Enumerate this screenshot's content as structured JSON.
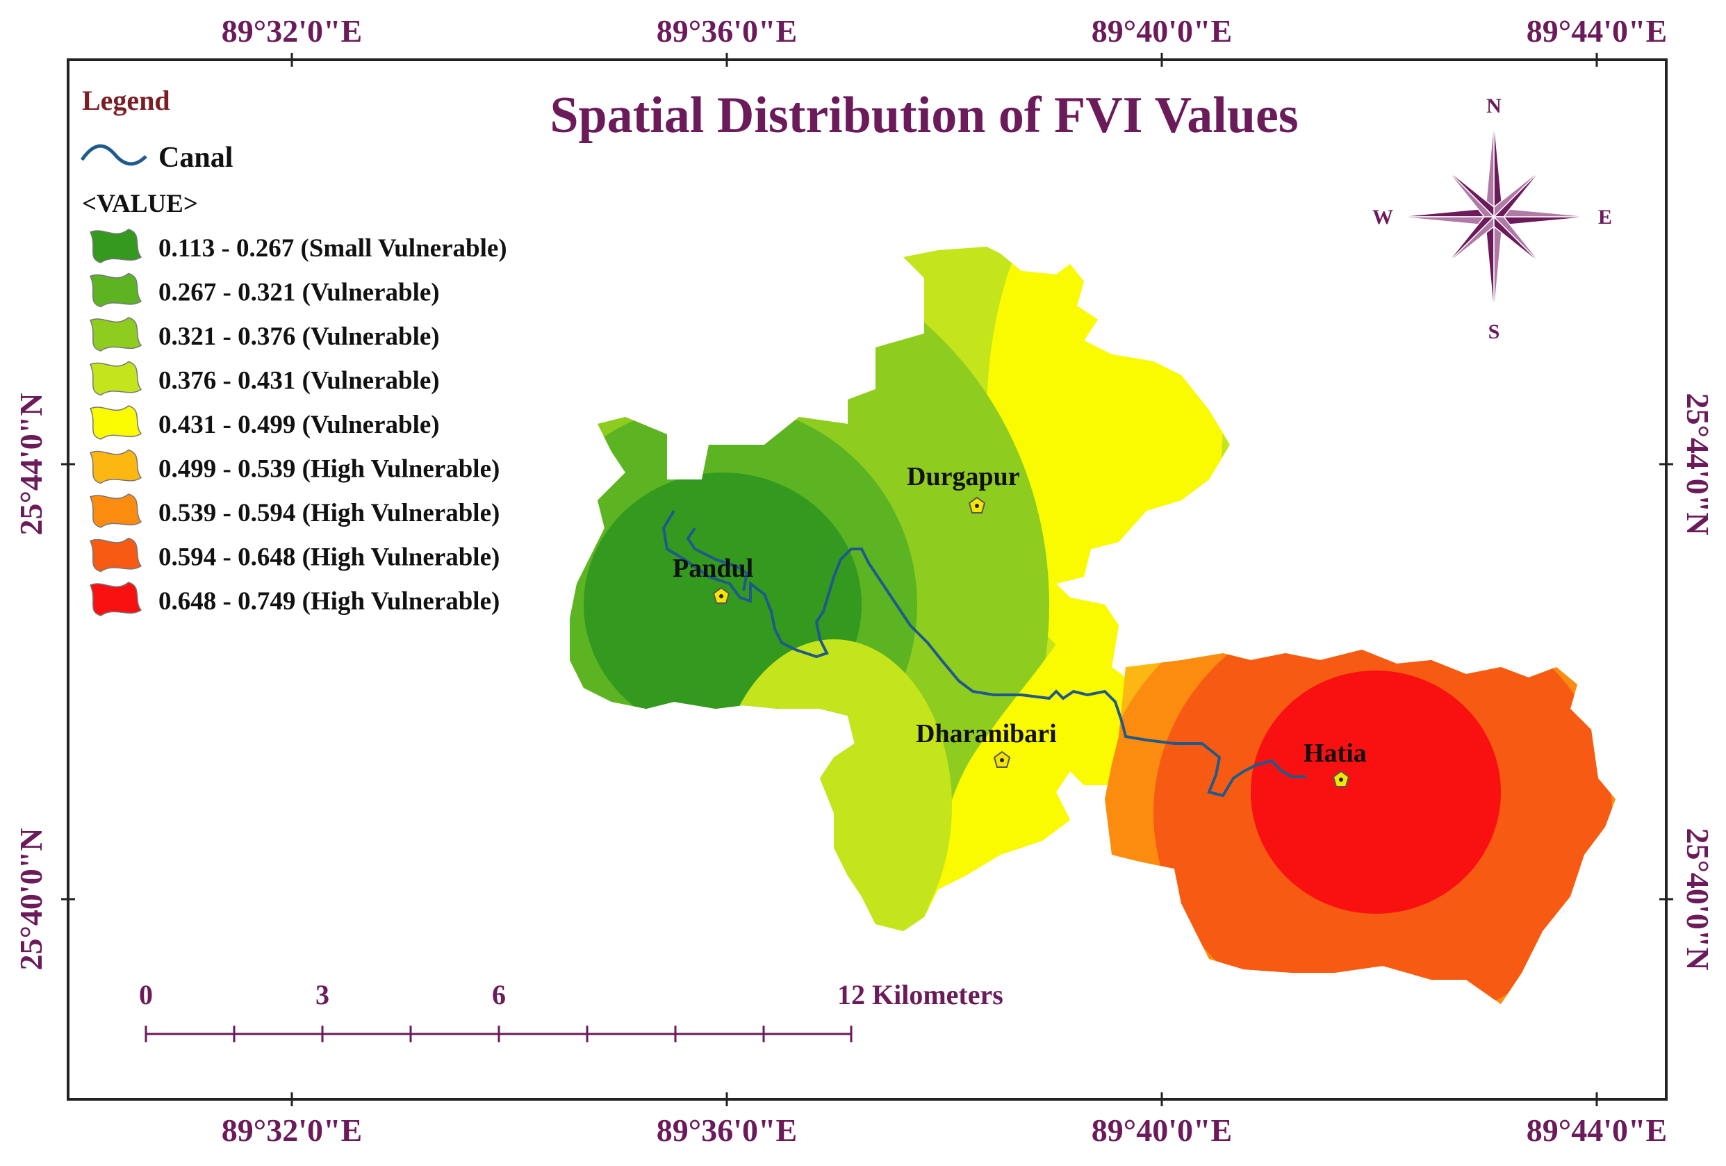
{
  "title": "Spatial Distribution of FVI Values",
  "legend": {
    "title": "Legend",
    "canal_label": "Canal",
    "value_header": "<VALUE>",
    "classes": [
      {
        "label": "0.113 - 0.267 (Small Vulnerable)",
        "color": "#339a1f"
      },
      {
        "label": "0.267 - 0.321 (Vulnerable)",
        "color": "#5cb423"
      },
      {
        "label": "0.321 - 0.376 (Vulnerable)",
        "color": "#8fcc20"
      },
      {
        "label": "0.376 - 0.431 (Vulnerable)",
        "color": "#c4e41b"
      },
      {
        "label": "0.431 - 0.499 (Vulnerable)",
        "color": "#fafa00"
      },
      {
        "label": "0.499 - 0.539 (High Vulnerable)",
        "color": "#fcb712"
      },
      {
        "label": "0.539 - 0.594 (High Vulnerable)",
        "color": "#fb8c10"
      },
      {
        "label": "0.594 - 0.648 (High Vulnerable)",
        "color": "#f75a12"
      },
      {
        "label": "0.648 - 0.749 (High Vulnerable)",
        "color": "#f91010"
      }
    ]
  },
  "longitude_ticks": [
    "89°32'0\"E",
    "89°36'0\"E",
    "89°40'0\"E",
    "89°44'0\"E"
  ],
  "latitude_ticks": [
    "25°44'0\"N",
    "25°40'0\"N"
  ],
  "places": [
    "Durgapur",
    "Pandul",
    "Dharanibari",
    "Hatia"
  ],
  "compass": {
    "n": "N",
    "s": "S",
    "e": "E",
    "w": "W"
  },
  "scale_bar": {
    "labels": [
      "0",
      "3",
      "6",
      "12 Kilometers"
    ]
  },
  "colors": {
    "frame": "#222222",
    "accent": "#6b1a5a",
    "canal": "#1f5a8a",
    "town_marker": "#f5e600"
  }
}
